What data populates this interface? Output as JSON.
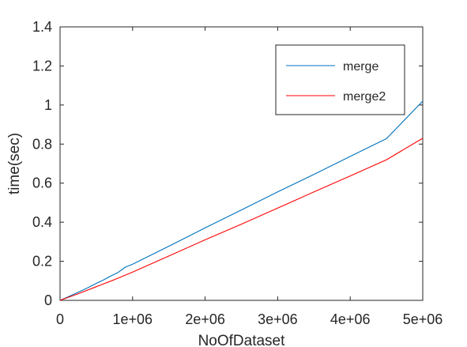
{
  "chart_data": {
    "type": "line",
    "title": "",
    "xlabel": "NoOfDataset",
    "ylabel": "time(sec)",
    "xlim": [
      0,
      5000000
    ],
    "ylim": [
      0,
      1.4
    ],
    "grid": false,
    "legend_position": "top-right",
    "x_ticks": [
      0,
      1000000,
      2000000,
      3000000,
      4000000,
      5000000
    ],
    "x_tick_labels": [
      "0",
      "1e+06",
      "2e+06",
      "3e+06",
      "4e+06",
      "5e+06"
    ],
    "y_ticks": [
      0,
      0.2,
      0.4,
      0.6,
      0.8,
      1.0,
      1.2,
      1.4
    ],
    "y_tick_labels": [
      "0",
      "0.2",
      "0.4",
      "0.6",
      "0.8",
      "1",
      "1.2",
      "1.4"
    ],
    "series": [
      {
        "name": "merge",
        "color": "#0072bd",
        "x": [
          0,
          100000,
          200000,
          300000,
          400000,
          500000,
          600000,
          700000,
          800000,
          900000,
          1000000,
          1500000,
          2000000,
          2500000,
          3000000,
          3500000,
          4000000,
          4500000,
          5000000
        ],
        "values": [
          0,
          0.016,
          0.033,
          0.05,
          0.068,
          0.087,
          0.105,
          0.125,
          0.143,
          0.17,
          0.185,
          0.277,
          0.371,
          0.463,
          0.555,
          0.645,
          0.737,
          0.828,
          1.02
        ]
      },
      {
        "name": "merge2",
        "color": "#ff0000",
        "x": [
          0,
          250000,
          500000,
          750000,
          1000000,
          1500000,
          2000000,
          2500000,
          3000000,
          3500000,
          4000000,
          4500000,
          5000000
        ],
        "values": [
          0,
          0.034,
          0.07,
          0.106,
          0.145,
          0.227,
          0.31,
          0.39,
          0.472,
          0.555,
          0.637,
          0.72,
          0.83
        ]
      }
    ]
  }
}
